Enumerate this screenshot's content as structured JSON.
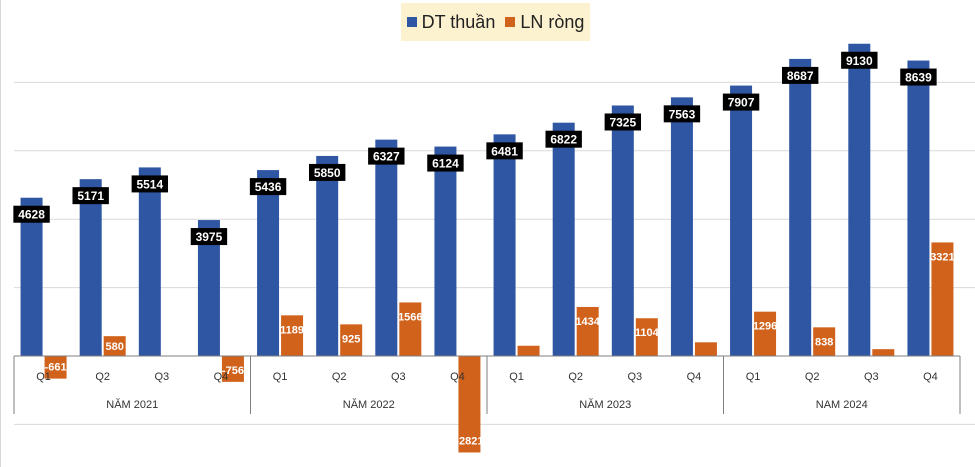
{
  "chart_data": {
    "type": "bar",
    "title": "",
    "xlabel": "",
    "ylabel": "",
    "ylim": [
      -3200,
      9800
    ],
    "grid": true,
    "legend": "top-center",
    "categories": [
      "Q1",
      "Q2",
      "Q3",
      "Q4",
      "Q1",
      "Q2",
      "Q3",
      "Q4",
      "Q1",
      "Q2",
      "Q3",
      "Q4",
      "Q1",
      "Q2",
      "Q3",
      "Q4"
    ],
    "groups": [
      {
        "label": "NĂM 2021",
        "count": 4
      },
      {
        "label": "NĂM 2022",
        "count": 4
      },
      {
        "label": "NĂM 2023",
        "count": 4
      },
      {
        "label": "NAM 2024",
        "count": 4
      }
    ],
    "series": [
      {
        "name": "DT thuần",
        "color": "#2e56a3",
        "values": [
          4628,
          5171,
          5514,
          3975,
          5436,
          5850,
          6327,
          6124,
          6481,
          6822,
          7325,
          7563,
          7907,
          8687,
          9130,
          8639
        ]
      },
      {
        "name": "LN ròng",
        "color": "#d0621c",
        "values": [
          -661,
          580,
          0,
          -756,
          1189,
          925,
          1566,
          -2821,
          300,
          1434,
          1104,
          400,
          1296,
          838,
          200,
          3321
        ]
      }
    ]
  }
}
